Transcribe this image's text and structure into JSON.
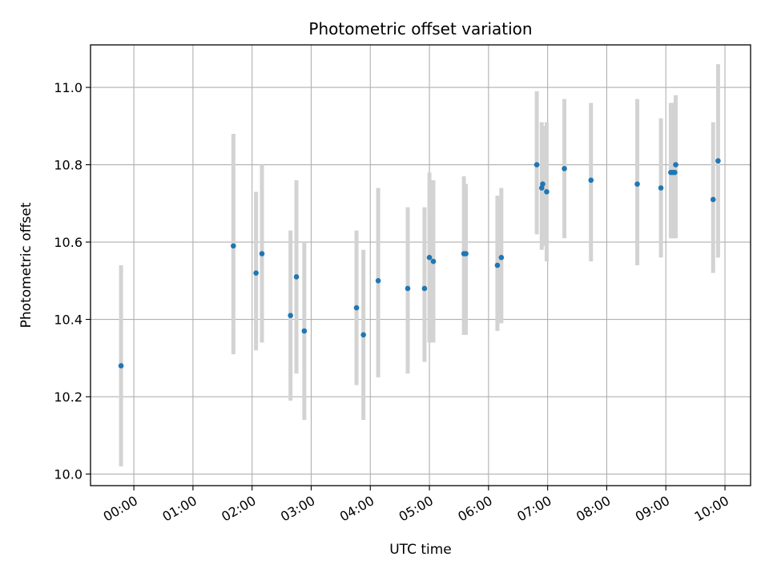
{
  "chart_data": {
    "type": "scatter",
    "title": "Photometric offset variation",
    "xlabel": "UTC time",
    "ylabel": "Photometric offset",
    "x_ticks": [
      "00:00",
      "01:00",
      "02:00",
      "03:00",
      "04:00",
      "05:00",
      "06:00",
      "07:00",
      "08:00",
      "09:00",
      "10:00"
    ],
    "y_ticks": [
      "10.0",
      "10.2",
      "10.4",
      "10.6",
      "10.8",
      "11.0"
    ],
    "xlim": [
      "-00:44",
      "10:26"
    ],
    "ylim": [
      9.97,
      11.11
    ],
    "grid": true,
    "colors": {
      "marker": "#1f77b4",
      "errorbar": "#d3d3d3",
      "grid": "#b0b0b0"
    },
    "points": [
      {
        "time": "-00:13",
        "y": 10.28,
        "lo": 10.02,
        "hi": 10.54
      },
      {
        "time": "01:41",
        "y": 10.59,
        "lo": 10.31,
        "hi": 10.88
      },
      {
        "time": "02:04",
        "y": 10.52,
        "lo": 10.32,
        "hi": 10.73
      },
      {
        "time": "02:10",
        "y": 10.57,
        "lo": 10.34,
        "hi": 10.8
      },
      {
        "time": "02:39",
        "y": 10.41,
        "lo": 10.19,
        "hi": 10.63
      },
      {
        "time": "02:45",
        "y": 10.51,
        "lo": 10.26,
        "hi": 10.76
      },
      {
        "time": "02:53",
        "y": 10.37,
        "lo": 10.14,
        "hi": 10.6
      },
      {
        "time": "03:46",
        "y": 10.43,
        "lo": 10.23,
        "hi": 10.63
      },
      {
        "time": "03:53",
        "y": 10.36,
        "lo": 10.14,
        "hi": 10.58
      },
      {
        "time": "04:08",
        "y": 10.5,
        "lo": 10.25,
        "hi": 10.74
      },
      {
        "time": "04:38",
        "y": 10.48,
        "lo": 10.26,
        "hi": 10.69
      },
      {
        "time": "04:55",
        "y": 10.48,
        "lo": 10.29,
        "hi": 10.69
      },
      {
        "time": "05:00",
        "y": 10.56,
        "lo": 10.34,
        "hi": 10.78
      },
      {
        "time": "05:04",
        "y": 10.55,
        "lo": 10.34,
        "hi": 10.76
      },
      {
        "time": "05:35",
        "y": 10.57,
        "lo": 10.36,
        "hi": 10.77
      },
      {
        "time": "05:37",
        "y": 10.57,
        "lo": 10.36,
        "hi": 10.75
      },
      {
        "time": "06:09",
        "y": 10.54,
        "lo": 10.37,
        "hi": 10.72
      },
      {
        "time": "06:13",
        "y": 10.56,
        "lo": 10.39,
        "hi": 10.74
      },
      {
        "time": "06:49",
        "y": 10.8,
        "lo": 10.62,
        "hi": 10.99
      },
      {
        "time": "06:54",
        "y": 10.74,
        "lo": 10.58,
        "hi": 10.91
      },
      {
        "time": "06:55",
        "y": 10.75,
        "lo": 10.59,
        "hi": 10.9
      },
      {
        "time": "06:59",
        "y": 10.73,
        "lo": 10.55,
        "hi": 10.91
      },
      {
        "time": "07:17",
        "y": 10.79,
        "lo": 10.61,
        "hi": 10.97
      },
      {
        "time": "07:44",
        "y": 10.76,
        "lo": 10.55,
        "hi": 10.96
      },
      {
        "time": "08:31",
        "y": 10.75,
        "lo": 10.54,
        "hi": 10.97
      },
      {
        "time": "08:55",
        "y": 10.74,
        "lo": 10.56,
        "hi": 10.92
      },
      {
        "time": "09:05",
        "y": 10.78,
        "lo": 10.61,
        "hi": 10.96
      },
      {
        "time": "09:07",
        "y": 10.78,
        "lo": 10.61,
        "hi": 10.96
      },
      {
        "time": "09:09",
        "y": 10.78,
        "lo": 10.61,
        "hi": 10.96
      },
      {
        "time": "09:10",
        "y": 10.8,
        "lo": 10.61,
        "hi": 10.98
      },
      {
        "time": "09:48",
        "y": 10.71,
        "lo": 10.52,
        "hi": 10.91
      },
      {
        "time": "09:53",
        "y": 10.81,
        "lo": 10.56,
        "hi": 11.06
      }
    ]
  }
}
